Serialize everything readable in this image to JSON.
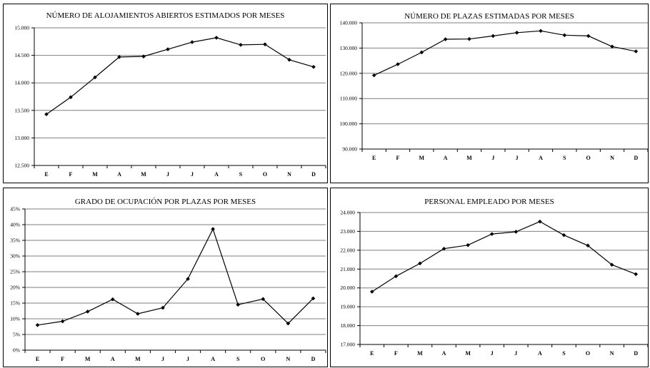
{
  "chart_data": [
    {
      "type": "line",
      "title": "NÚMERO DE ALOJAMIENTOS ABIERTOS ESTIMADOS POR MESES",
      "categories": [
        "E",
        "F",
        "M",
        "A",
        "M",
        "J",
        "J",
        "A",
        "S",
        "O",
        "N",
        "D"
      ],
      "yticks": [
        "12.500",
        "13.000",
        "13.500",
        "14.000",
        "14.500",
        "15.000"
      ],
      "ylim": [
        12500,
        15000
      ],
      "values": [
        13430,
        13740,
        14100,
        14470,
        14480,
        14610,
        14740,
        14820,
        14690,
        14700,
        14420,
        14290
      ],
      "grid": true
    },
    {
      "type": "line",
      "title": "NÚMERO DE PLAZAS ESTIMADAS POR MESES",
      "categories": [
        "E",
        "F",
        "M",
        "A",
        "M",
        "J",
        "J",
        "A",
        "S",
        "O",
        "N",
        "D"
      ],
      "yticks": [
        "90.000",
        "100.000",
        "110.000",
        "120.000",
        "130.000",
        "140.000"
      ],
      "ylim": [
        90000,
        140000
      ],
      "values": [
        119200,
        123600,
        128300,
        133500,
        133600,
        134800,
        136100,
        136800,
        135100,
        134800,
        130600,
        128700
      ],
      "grid": true
    },
    {
      "type": "line",
      "title": "GRADO DE OCUPACIÓN POR PLAZAS POR MESES",
      "categories": [
        "E",
        "F",
        "M",
        "A",
        "M",
        "J",
        "J",
        "A",
        "S",
        "O",
        "N",
        "D"
      ],
      "yticks": [
        "0%",
        "5%",
        "10%",
        "15%",
        "20%",
        "25%",
        "30%",
        "35%",
        "40%",
        "45%"
      ],
      "ylim": [
        0,
        45
      ],
      "values": [
        8.0,
        9.2,
        12.3,
        16.2,
        11.6,
        13.5,
        22.7,
        38.6,
        14.5,
        16.3,
        8.5,
        16.5
      ],
      "grid": true
    },
    {
      "type": "line",
      "title": "PERSONAL EMPLEADO POR MESES",
      "categories": [
        "E",
        "F",
        "M",
        "A",
        "M",
        "J",
        "J",
        "A",
        "S",
        "O",
        "N",
        "D"
      ],
      "yticks": [
        "17.000",
        "18.000",
        "19.000",
        "20.000",
        "21.000",
        "22.000",
        "23.000",
        "24.000"
      ],
      "ylim": [
        17000,
        24000
      ],
      "values": [
        19800,
        20620,
        21300,
        22080,
        22270,
        22860,
        22980,
        23520,
        22800,
        22250,
        21230,
        20730
      ],
      "grid": true
    }
  ]
}
